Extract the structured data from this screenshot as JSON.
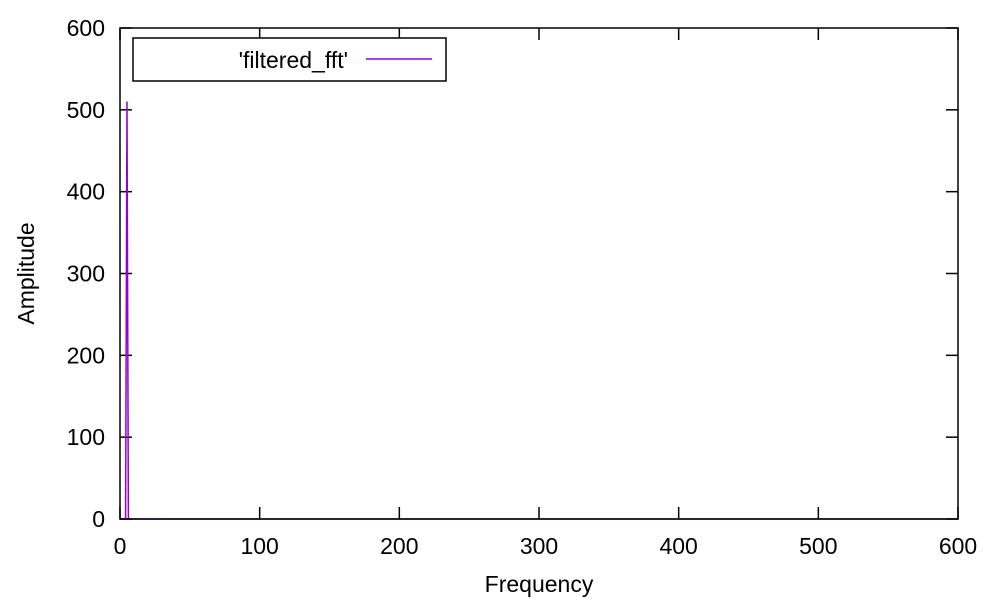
{
  "chart_data": {
    "type": "line",
    "title": "",
    "xlabel": "Frequency",
    "ylabel": "Amplitude",
    "xlim": [
      0,
      600
    ],
    "ylim": [
      0,
      600
    ],
    "xticks": [
      0,
      100,
      200,
      300,
      400,
      500,
      600
    ],
    "yticks": [
      0,
      100,
      200,
      300,
      400,
      500,
      600
    ],
    "grid": false,
    "legend_position": "top-left",
    "series": [
      {
        "name": "'filtered_fft'",
        "color": "#9400d3",
        "x": [
          0,
          1,
          2,
          3,
          4,
          5,
          6,
          10,
          50,
          100,
          200,
          300,
          400,
          500,
          600
        ],
        "y": [
          0,
          0,
          0,
          0,
          0,
          510,
          0,
          0,
          0,
          0,
          0,
          0,
          0,
          0,
          0
        ]
      }
    ]
  }
}
